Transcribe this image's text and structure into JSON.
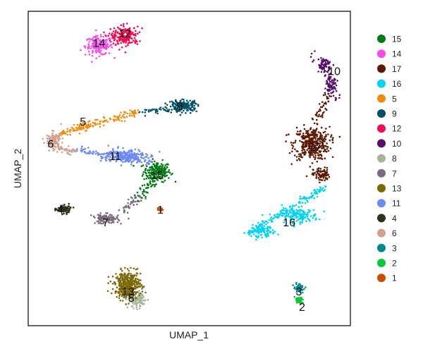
{
  "chart_data": {
    "type": "scatter",
    "title": "",
    "xlabel": "UMAP_1",
    "ylabel": "UMAP_2",
    "xlim": [
      0,
      100
    ],
    "ylim": [
      0,
      100
    ],
    "grid": false,
    "legend_position": "right",
    "series": [
      {
        "name": "15",
        "color": "#007A13",
        "label_pos": [
          40,
          48
        ],
        "blobs": [
          [
            40,
            49,
            4.2,
            3.2,
            200
          ]
        ],
        "trail": {
          "from": [
            34,
            40
          ],
          "to": [
            39,
            46
          ],
          "n": 40
        }
      },
      {
        "name": "14",
        "color": "#F34CEB",
        "label_pos": [
          22,
          90
        ],
        "blobs": [
          [
            22,
            89,
            4.3,
            3.0,
            170
          ]
        ]
      },
      {
        "name": "17",
        "color": "#5E1800",
        "label_pos": [
          89,
          57
        ],
        "blobs": [
          [
            88,
            58,
            5.5,
            5.2,
            380
          ],
          [
            91,
            48,
            2.5,
            2.2,
            80
          ]
        ],
        "trail": {
          "from": [
            93,
            74
          ],
          "to": [
            90,
            66
          ],
          "n": 40
        }
      },
      {
        "name": "16",
        "color": "#00D3F2",
        "label_pos": [
          81,
          33
        ],
        "blobs": [
          [
            84,
            35,
            6.0,
            2.2,
            150
          ],
          [
            73,
            30,
            3.5,
            1.8,
            70
          ]
        ],
        "trail": {
          "from": [
            92,
            44
          ],
          "to": [
            68,
            29
          ],
          "n": 160
        }
      },
      {
        "name": "5",
        "color": "#F08C0E",
        "label_pos": [
          17,
          65
        ],
        "trail": {
          "from": [
            10,
            61
          ],
          "to": [
            34,
            68
          ],
          "n": 170
        }
      },
      {
        "name": "9",
        "color": "#005168",
        "label_pos": [
          47,
          70
        ],
        "blobs": [
          [
            48,
            70,
            4.5,
            1.8,
            150
          ]
        ],
        "trail": {
          "from": [
            36,
            68
          ],
          "to": [
            52,
            70
          ],
          "n": 60
        }
      },
      {
        "name": "12",
        "color": "#F20E52",
        "label_pos": [
          30,
          93
        ],
        "blobs": [
          [
            30,
            92,
            4.3,
            3.0,
            200
          ]
        ]
      },
      {
        "name": "10",
        "color": "#550F6C",
        "label_pos": [
          95,
          81
        ],
        "blobs": [
          [
            92,
            83,
            2.0,
            2.3,
            60
          ],
          [
            94,
            76,
            1.6,
            2.5,
            60
          ]
        ],
        "trail": {
          "from": [
            89,
            86
          ],
          "to": [
            96,
            72
          ],
          "n": 40
        }
      },
      {
        "name": "8",
        "color": "#A7B49A",
        "label_pos": [
          32,
          9
        ],
        "blobs": [
          [
            34,
            8,
            3.0,
            2.5,
            100
          ]
        ]
      },
      {
        "name": "7",
        "color": "#7A6B7E",
        "label_pos": [
          24,
          33
        ],
        "blobs": [
          [
            24,
            34,
            4.0,
            1.5,
            110
          ]
        ],
        "trail": {
          "from": [
            29,
            36
          ],
          "to": [
            34,
            41
          ],
          "n": 40
        }
      },
      {
        "name": "13",
        "color": "#7C6907",
        "label_pos": [
          31,
          11
        ],
        "blobs": [
          [
            31,
            13,
            4.0,
            4.2,
            400
          ]
        ]
      },
      {
        "name": "11",
        "color": "#6B8AF0",
        "label_pos": [
          27,
          54
        ],
        "blobs": [
          [
            30,
            54,
            6.5,
            2.2,
            220
          ]
        ],
        "trail": {
          "from": [
            14,
            56
          ],
          "to": [
            38,
            52
          ],
          "n": 80
        }
      },
      {
        "name": "4",
        "color": "#2A3419",
        "label_pos": [
          10,
          37
        ],
        "blobs": [
          [
            11,
            37,
            2.2,
            1.3,
            100
          ]
        ]
      },
      {
        "name": "6",
        "color": "#D3A08E",
        "label_pos": [
          7,
          58
        ],
        "blobs": [
          [
            8,
            59,
            2.3,
            2.4,
            110
          ]
        ],
        "trail": {
          "from": [
            8,
            57
          ],
          "to": [
            14,
            55
          ],
          "n": 40
        }
      },
      {
        "name": "3",
        "color": "#00898C",
        "label_pos": [
          84,
          11
        ],
        "blobs": [
          [
            84,
            12,
            1.5,
            1.3,
            50
          ]
        ]
      },
      {
        "name": "2",
        "color": "#0BC73A",
        "label_pos": [
          85,
          6
        ],
        "blobs": [
          [
            84,
            8,
            1.3,
            1.0,
            50
          ]
        ]
      },
      {
        "name": "1",
        "color": "#C84E00",
        "label_pos": [
          41,
          37
        ],
        "blobs": [
          [
            41,
            37,
            0.8,
            0.6,
            20
          ]
        ]
      }
    ]
  }
}
